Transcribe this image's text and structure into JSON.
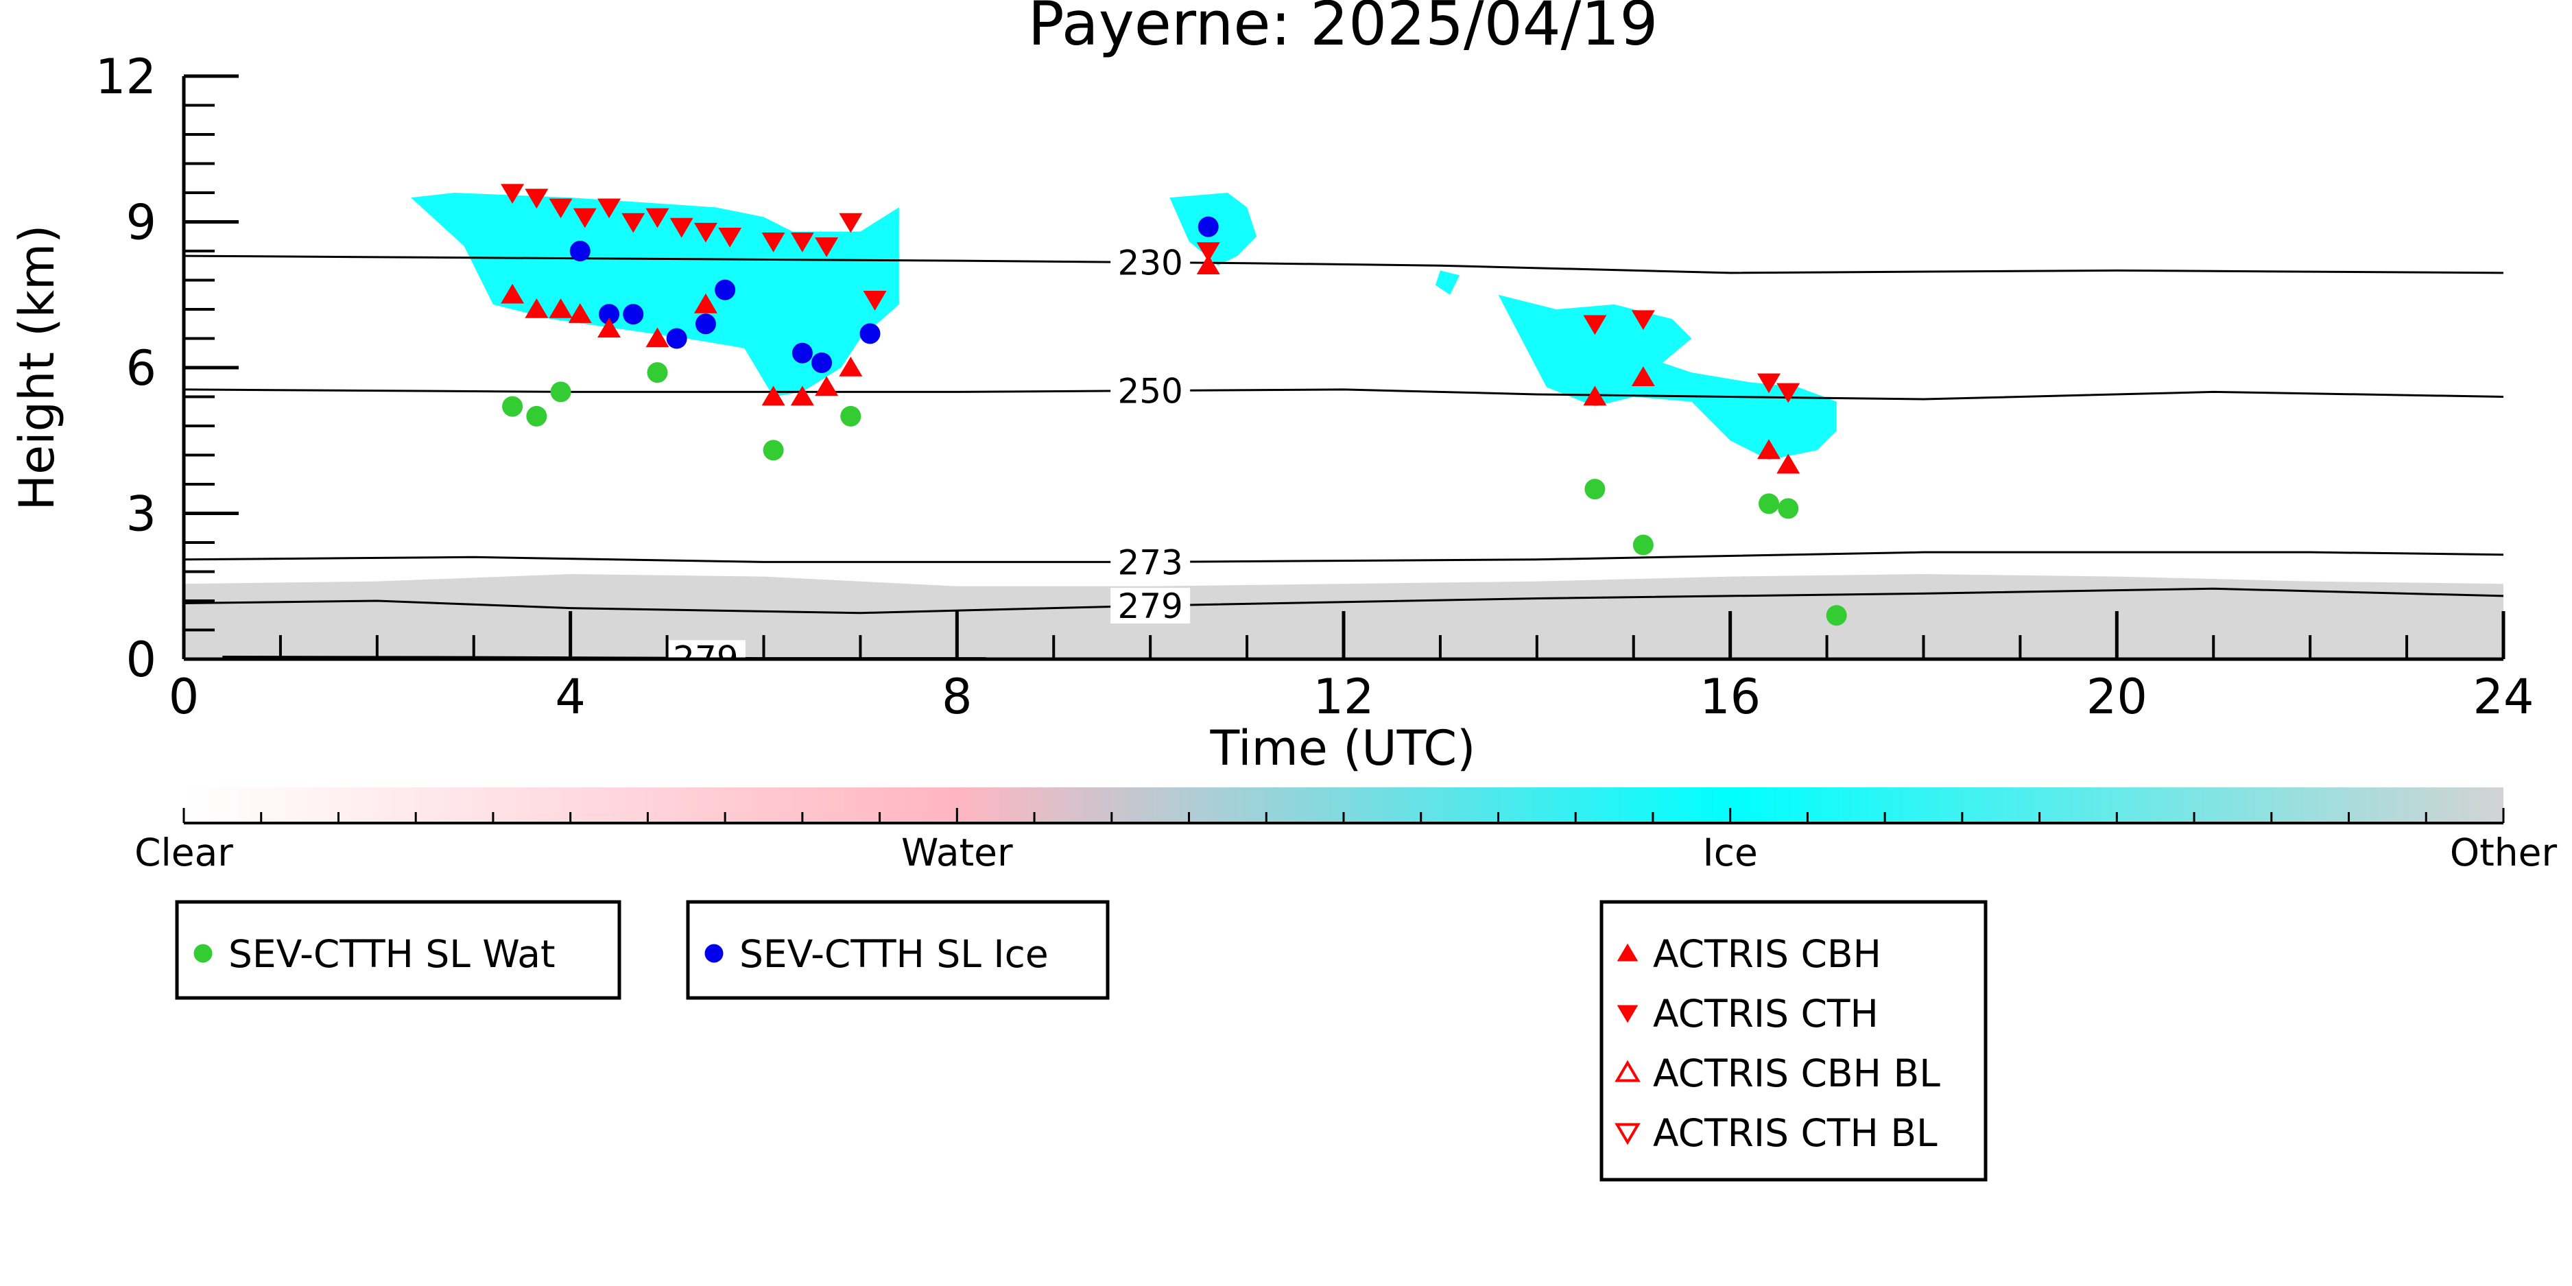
{
  "chart_data": {
    "type": "scatter",
    "title": "Payerne: 2025/04/19",
    "xlabel": "Time (UTC)",
    "ylabel": "Height (km)",
    "xlim": [
      0,
      24
    ],
    "ylim": [
      0,
      12
    ],
    "xticks": [
      0,
      4,
      8,
      12,
      16,
      20,
      24
    ],
    "yticks": [
      0,
      3,
      6,
      9,
      12
    ],
    "colorbar": {
      "labels": [
        "Clear",
        "Water",
        "Ice",
        "Other"
      ],
      "colors": [
        "#ffffff",
        "#ffb6c1",
        "#00ffff",
        "#d3d3d3"
      ]
    },
    "contours": [
      {
        "label": "230",
        "points": [
          [
            0,
            8.3
          ],
          [
            4,
            8.25
          ],
          [
            8,
            8.2
          ],
          [
            11,
            8.15
          ],
          [
            13,
            8.1
          ],
          [
            16,
            7.95
          ],
          [
            20,
            8.0
          ],
          [
            24,
            7.95
          ]
        ]
      },
      {
        "label": "250",
        "points": [
          [
            0,
            5.55
          ],
          [
            4,
            5.5
          ],
          [
            8,
            5.5
          ],
          [
            12,
            5.55
          ],
          [
            14,
            5.45
          ],
          [
            18,
            5.35
          ],
          [
            21,
            5.5
          ],
          [
            24,
            5.4
          ]
        ]
      },
      {
        "label": "273",
        "points": [
          [
            0,
            2.05
          ],
          [
            3,
            2.1
          ],
          [
            6,
            2.0
          ],
          [
            10,
            2.0
          ],
          [
            14,
            2.05
          ],
          [
            18,
            2.2
          ],
          [
            22,
            2.2
          ],
          [
            24,
            2.15
          ]
        ]
      },
      {
        "label": "279",
        "points": [
          [
            0,
            1.15
          ],
          [
            2,
            1.2
          ],
          [
            4,
            1.05
          ],
          [
            7,
            0.95
          ],
          [
            10,
            1.1
          ],
          [
            14,
            1.25
          ],
          [
            18,
            1.35
          ],
          [
            21,
            1.45
          ],
          [
            24,
            1.3
          ]
        ]
      },
      {
        "label": "279",
        "points": [
          [
            0.4,
            0.05
          ],
          [
            3,
            0.04
          ],
          [
            6,
            0.02
          ],
          [
            8.3,
            0.02
          ]
        ]
      }
    ],
    "series": [
      {
        "name": "SEV-CTTH SL Wat",
        "color": "#33cc33",
        "marker": "circle",
        "x": [
          3.4,
          3.65,
          3.9,
          4.9,
          6.1,
          6.9,
          14.6,
          15.1,
          16.4,
          16.6,
          17.1
        ],
        "y": [
          5.2,
          5.0,
          5.5,
          5.9,
          4.3,
          5.0,
          3.5,
          2.35,
          3.2,
          3.1,
          0.9
        ]
      },
      {
        "name": "SEV-CTTH SL Ice",
        "color": "#0000ee",
        "marker": "circle",
        "x": [
          4.1,
          4.4,
          4.65,
          5.1,
          5.4,
          5.6,
          6.4,
          6.6,
          7.1,
          10.6
        ],
        "y": [
          8.4,
          7.1,
          7.1,
          6.6,
          6.9,
          7.6,
          6.3,
          6.1,
          6.7,
          8.9
        ]
      },
      {
        "name": "ACTRIS CBH",
        "color": "#ff0000",
        "marker": "triangle-up",
        "x": [
          3.4,
          3.65,
          3.9,
          4.1,
          4.4,
          4.9,
          5.4,
          6.1,
          6.4,
          6.65,
          6.9,
          10.6,
          14.6,
          15.1,
          16.4,
          16.6
        ],
        "y": [
          7.5,
          7.2,
          7.2,
          7.1,
          6.8,
          6.6,
          7.3,
          5.4,
          5.4,
          5.6,
          6.0,
          8.1,
          5.4,
          5.8,
          4.3,
          4.0
        ]
      },
      {
        "name": "ACTRIS CTH",
        "color": "#ff0000",
        "marker": "triangle-down",
        "x": [
          3.4,
          3.65,
          3.9,
          4.15,
          4.4,
          4.65,
          4.9,
          5.15,
          5.4,
          5.65,
          6.1,
          6.4,
          6.65,
          6.9,
          7.15,
          10.6,
          14.6,
          15.1,
          16.4,
          16.6
        ],
        "y": [
          9.6,
          9.5,
          9.3,
          9.1,
          9.3,
          9.0,
          9.1,
          8.9,
          8.8,
          8.7,
          8.6,
          8.6,
          8.5,
          9.0,
          7.4,
          8.4,
          6.9,
          7.0,
          5.7,
          5.5
        ]
      },
      {
        "name": "ACTRIS CBH BL",
        "color": "#ff0000",
        "marker": "triangle-up-open",
        "x": [],
        "y": []
      },
      {
        "name": "ACTRIS CTH BL",
        "color": "#ff0000",
        "marker": "triangle-down-open",
        "x": [],
        "y": []
      }
    ],
    "cloud_regions": [
      {
        "class": "Ice",
        "x": [
          2.35,
          2.8,
          4.0,
          5.5,
          6.0,
          6.3,
          7.0,
          7.4,
          7.4,
          7.0,
          6.8,
          6.4,
          6.1,
          5.8,
          5.2,
          4.5,
          3.8,
          3.2,
          2.9,
          2.35
        ],
        "y": [
          9.5,
          9.6,
          9.5,
          9.3,
          9.1,
          8.8,
          8.8,
          9.3,
          7.3,
          6.6,
          6.0,
          5.5,
          5.4,
          6.4,
          6.6,
          6.8,
          7.0,
          7.3,
          8.5,
          9.5
        ]
      },
      {
        "class": "Ice",
        "x": [
          10.2,
          10.8,
          11.0,
          11.1,
          10.9,
          10.7,
          10.4,
          10.2
        ],
        "y": [
          9.5,
          9.6,
          9.3,
          8.7,
          8.3,
          8.1,
          8.6,
          9.5
        ]
      },
      {
        "class": "Ice",
        "x": [
          13.0,
          13.2,
          13.1,
          12.95
        ],
        "y": [
          8.0,
          7.9,
          7.5,
          7.7
        ]
      },
      {
        "class": "Ice",
        "x": [
          13.6,
          14.2,
          14.8,
          15.4,
          15.6,
          15.3,
          15.6,
          16.2,
          16.7,
          17.1,
          17.1,
          16.9,
          16.4,
          16.0,
          15.6,
          15.0,
          14.6,
          14.1,
          13.6
        ],
        "y": [
          7.5,
          7.2,
          7.3,
          7.0,
          6.6,
          6.1,
          5.9,
          5.7,
          5.6,
          5.3,
          4.7,
          4.3,
          4.1,
          4.5,
          5.3,
          5.4,
          5.2,
          5.6,
          7.5
        ]
      }
    ],
    "ground_clutter": {
      "class": "Other",
      "x": [
        0,
        2,
        4,
        6,
        8,
        10,
        12,
        14,
        16,
        18,
        20,
        22,
        24
      ],
      "top": [
        1.55,
        1.6,
        1.75,
        1.7,
        1.5,
        1.5,
        1.55,
        1.6,
        1.7,
        1.75,
        1.7,
        1.6,
        1.55
      ]
    }
  }
}
